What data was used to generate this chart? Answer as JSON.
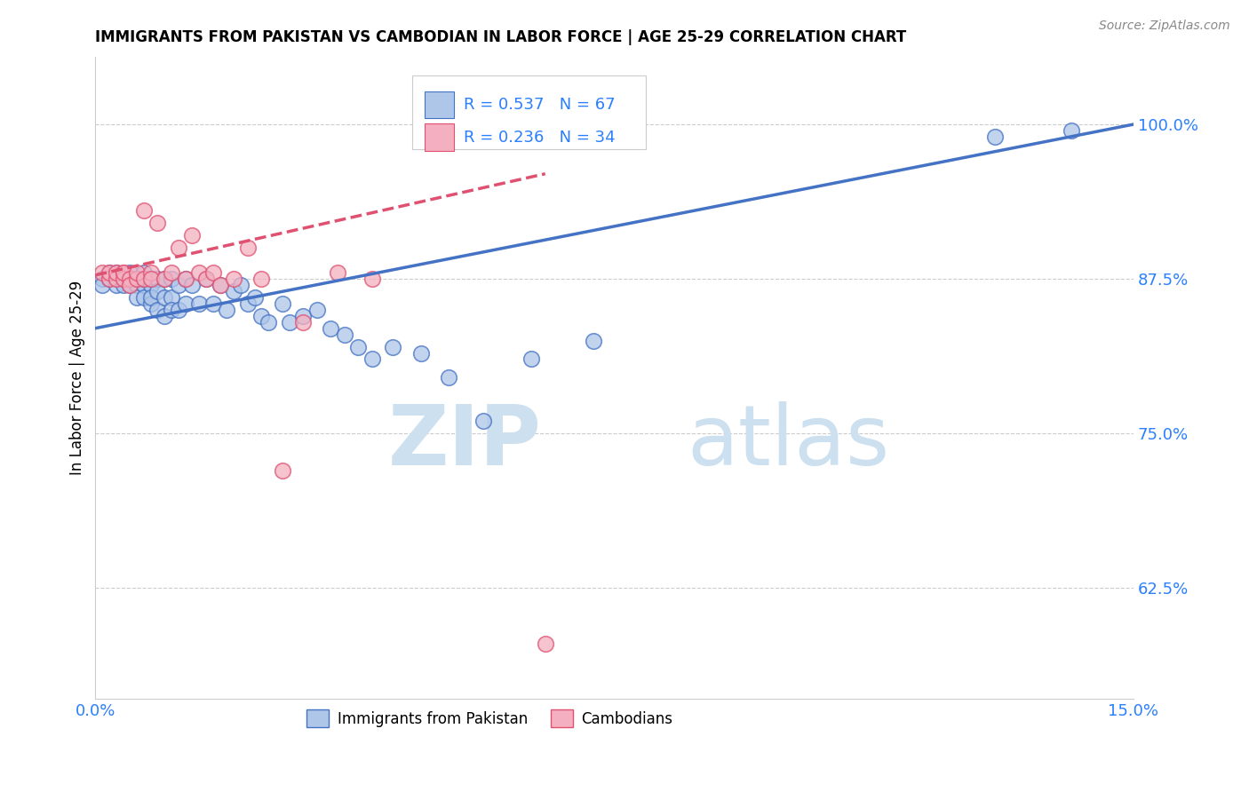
{
  "title": "IMMIGRANTS FROM PAKISTAN VS CAMBODIAN IN LABOR FORCE | AGE 25-29 CORRELATION CHART",
  "source": "Source: ZipAtlas.com",
  "ylabel": "In Labor Force | Age 25-29",
  "xmin": 0.0,
  "xmax": 0.15,
  "ymin": 0.535,
  "ymax": 1.055,
  "yticks": [
    0.625,
    0.75,
    0.875,
    1.0
  ],
  "ytick_labels": [
    "62.5%",
    "75.0%",
    "87.5%",
    "100.0%"
  ],
  "xticks": [
    0.0,
    0.025,
    0.05,
    0.075,
    0.1,
    0.125,
    0.15
  ],
  "xtick_labels": [
    "0.0%",
    "",
    "",
    "",
    "",
    "",
    "15.0%"
  ],
  "legend_r1": "R = 0.537",
  "legend_n1": "N = 67",
  "legend_r2": "R = 0.236",
  "legend_n2": "N = 34",
  "pakistan_color": "#aec6e8",
  "cambodian_color": "#f4b0c0",
  "pakistan_line_color": "#4472c4",
  "cambodian_line_color": "#e05070",
  "axis_color": "#2a7fff",
  "pakistan_x": [
    0.001,
    0.001,
    0.002,
    0.002,
    0.003,
    0.003,
    0.003,
    0.004,
    0.004,
    0.004,
    0.005,
    0.005,
    0.005,
    0.005,
    0.006,
    0.006,
    0.006,
    0.006,
    0.007,
    0.007,
    0.007,
    0.007,
    0.008,
    0.008,
    0.008,
    0.008,
    0.009,
    0.009,
    0.009,
    0.01,
    0.01,
    0.01,
    0.011,
    0.011,
    0.011,
    0.012,
    0.012,
    0.013,
    0.013,
    0.014,
    0.015,
    0.016,
    0.017,
    0.018,
    0.019,
    0.02,
    0.021,
    0.022,
    0.023,
    0.024,
    0.025,
    0.027,
    0.028,
    0.03,
    0.032,
    0.034,
    0.036,
    0.038,
    0.04,
    0.043,
    0.047,
    0.051,
    0.056,
    0.063,
    0.072,
    0.13,
    0.141
  ],
  "pakistan_y": [
    0.875,
    0.87,
    0.88,
    0.875,
    0.875,
    0.87,
    0.88,
    0.875,
    0.87,
    0.875,
    0.88,
    0.875,
    0.87,
    0.875,
    0.875,
    0.87,
    0.86,
    0.875,
    0.88,
    0.87,
    0.86,
    0.875,
    0.87,
    0.855,
    0.875,
    0.86,
    0.875,
    0.865,
    0.85,
    0.875,
    0.86,
    0.845,
    0.875,
    0.86,
    0.85,
    0.87,
    0.85,
    0.875,
    0.855,
    0.87,
    0.855,
    0.875,
    0.855,
    0.87,
    0.85,
    0.865,
    0.87,
    0.855,
    0.86,
    0.845,
    0.84,
    0.855,
    0.84,
    0.845,
    0.85,
    0.835,
    0.83,
    0.82,
    0.81,
    0.82,
    0.815,
    0.795,
    0.76,
    0.81,
    0.825,
    0.99,
    0.995
  ],
  "cambodian_x": [
    0.001,
    0.002,
    0.002,
    0.003,
    0.003,
    0.004,
    0.004,
    0.004,
    0.005,
    0.005,
    0.006,
    0.006,
    0.007,
    0.007,
    0.008,
    0.008,
    0.009,
    0.01,
    0.011,
    0.012,
    0.013,
    0.014,
    0.015,
    0.016,
    0.017,
    0.018,
    0.02,
    0.022,
    0.024,
    0.027,
    0.03,
    0.035,
    0.04,
    0.065
  ],
  "cambodian_y": [
    0.88,
    0.875,
    0.88,
    0.875,
    0.88,
    0.88,
    0.875,
    0.88,
    0.875,
    0.87,
    0.875,
    0.88,
    0.93,
    0.875,
    0.88,
    0.875,
    0.92,
    0.875,
    0.88,
    0.9,
    0.875,
    0.91,
    0.88,
    0.875,
    0.88,
    0.87,
    0.875,
    0.9,
    0.875,
    0.72,
    0.84,
    0.88,
    0.875,
    0.58
  ],
  "blue_line_x0": 0.0,
  "blue_line_y0": 0.835,
  "blue_line_x1": 0.15,
  "blue_line_y1": 1.0,
  "pink_line_x0": 0.0,
  "pink_line_y0": 0.878,
  "pink_line_x1": 0.065,
  "pink_line_y1": 0.96
}
